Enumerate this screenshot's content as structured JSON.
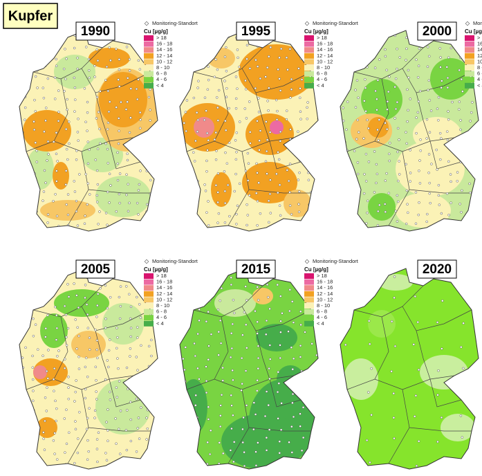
{
  "title": "Kupfer",
  "legend": {
    "marker_label": "Monitoring-Standort",
    "title": "Cu [µg/g]",
    "classes": [
      {
        "label": "> 18",
        "color": "#d8146e"
      },
      {
        "label": "16 - 18",
        "color": "#ec6aa2"
      },
      {
        "label": "14 - 16",
        "color": "#f08a8a"
      },
      {
        "label": "12 - 14",
        "color": "#f2a122"
      },
      {
        "label": "10 - 12",
        "color": "#f7c766"
      },
      {
        "label": "8 - 10",
        "color": "#fbf2b6"
      },
      {
        "label": "6 - 8",
        "color": "#c9e99c"
      },
      {
        "label": "4 - 6",
        "color": "#79d442"
      },
      {
        "label": "< 4",
        "color": "#46ad4a"
      }
    ]
  },
  "panels": [
    {
      "year": "1990",
      "legend": true
    },
    {
      "year": "1995",
      "legend": true
    },
    {
      "year": "2000",
      "legend": true
    },
    {
      "year": "2005",
      "legend": true
    },
    {
      "year": "2015",
      "legend": true
    },
    {
      "year": "2020",
      "legend": false
    }
  ]
}
